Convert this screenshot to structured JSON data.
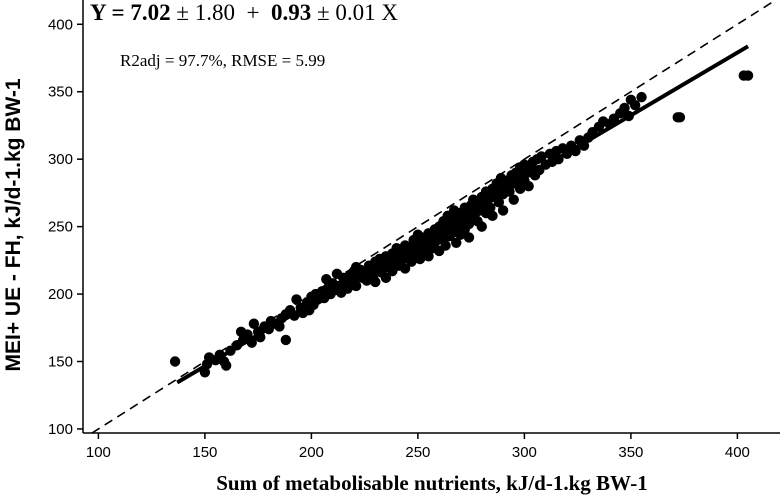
{
  "chart_data": {
    "type": "scatter",
    "xlabel": "Sum of metabolisable nutrients, kJ/d-1.kg BW-1",
    "ylabel": "MEI+ UE - FH, kJ/d-1.kg BW-1",
    "xlim": [
      97,
      420
    ],
    "ylim": [
      97,
      418
    ],
    "xticks": [
      100,
      150,
      200,
      250,
      300,
      350,
      400
    ],
    "yticks": [
      100,
      150,
      200,
      250,
      300,
      350,
      400
    ],
    "equation": {
      "prefix": "Y = ",
      "intercept": "7.02",
      "intercept_se": " ± 1.80  +  ",
      "slope": "0.93",
      "slope_se": " ± 0.01 X"
    },
    "stats_text": "R2adj = 97.7%, RMSE = 5.99",
    "regression_line": {
      "slope": 0.93,
      "intercept": 7.02,
      "x_range": [
        137,
        405
      ]
    },
    "identity_line": {
      "slope": 1,
      "intercept": 0,
      "x_range": [
        97,
        418
      ]
    },
    "points": [
      [
        136,
        150
      ],
      [
        150,
        142
      ],
      [
        151,
        148
      ],
      [
        152,
        153
      ],
      [
        155,
        151
      ],
      [
        157,
        155
      ],
      [
        159,
        150
      ],
      [
        160,
        147
      ],
      [
        162,
        158
      ],
      [
        165,
        162
      ],
      [
        167,
        172
      ],
      [
        168,
        166
      ],
      [
        170,
        170
      ],
      [
        172,
        164
      ],
      [
        173,
        178
      ],
      [
        175,
        172
      ],
      [
        176,
        168
      ],
      [
        178,
        176
      ],
      [
        180,
        174
      ],
      [
        181,
        180
      ],
      [
        183,
        178
      ],
      [
        185,
        176
      ],
      [
        186,
        182
      ],
      [
        188,
        185
      ],
      [
        188,
        166
      ],
      [
        190,
        188
      ],
      [
        192,
        184
      ],
      [
        193,
        196
      ],
      [
        195,
        190
      ],
      [
        196,
        186
      ],
      [
        198,
        194
      ],
      [
        199,
        188
      ],
      [
        200,
        198
      ],
      [
        201,
        192
      ],
      [
        202,
        200
      ],
      [
        203,
        196
      ],
      [
        205,
        202
      ],
      [
        206,
        197
      ],
      [
        207,
        211
      ],
      [
        208,
        205
      ],
      [
        209,
        200
      ],
      [
        210,
        208
      ],
      [
        211,
        203
      ],
      [
        212,
        215
      ],
      [
        213,
        206
      ],
      [
        214,
        201
      ],
      [
        215,
        212
      ],
      [
        216,
        208
      ],
      [
        217,
        204
      ],
      [
        218,
        214
      ],
      [
        219,
        210
      ],
      [
        220,
        217
      ],
      [
        221,
        206
      ],
      [
        221,
        220
      ],
      [
        222,
        213
      ],
      [
        223,
        218
      ],
      [
        224,
        212
      ],
      [
        225,
        216
      ],
      [
        226,
        210
      ],
      [
        227,
        221
      ],
      [
        228,
        218
      ],
      [
        229,
        213
      ],
      [
        230,
        224
      ],
      [
        230,
        209
      ],
      [
        231,
        219
      ],
      [
        232,
        226
      ],
      [
        233,
        216
      ],
      [
        234,
        222
      ],
      [
        235,
        228
      ],
      [
        235,
        212
      ],
      [
        236,
        220
      ],
      [
        237,
        225
      ],
      [
        238,
        230
      ],
      [
        238,
        217
      ],
      [
        239,
        223
      ],
      [
        240,
        228
      ],
      [
        240,
        234
      ],
      [
        241,
        221
      ],
      [
        242,
        232
      ],
      [
        243,
        226
      ],
      [
        244,
        236
      ],
      [
        244,
        219
      ],
      [
        245,
        230
      ],
      [
        246,
        234
      ],
      [
        247,
        224
      ],
      [
        248,
        240
      ],
      [
        248,
        228
      ],
      [
        249,
        236
      ],
      [
        250,
        232
      ],
      [
        250,
        244
      ],
      [
        251,
        226
      ],
      [
        252,
        238
      ],
      [
        253,
        242
      ],
      [
        253,
        231
      ],
      [
        254,
        236
      ],
      [
        255,
        245
      ],
      [
        255,
        228
      ],
      [
        256,
        240
      ],
      [
        257,
        234
      ],
      [
        258,
        248
      ],
      [
        258,
        238
      ],
      [
        259,
        242
      ],
      [
        260,
        250
      ],
      [
        260,
        232
      ],
      [
        261,
        246
      ],
      [
        262,
        240
      ],
      [
        262,
        254
      ],
      [
        263,
        236
      ],
      [
        264,
        248
      ],
      [
        264,
        258
      ],
      [
        265,
        243
      ],
      [
        266,
        252
      ],
      [
        267,
        246
      ],
      [
        267,
        262
      ],
      [
        268,
        238
      ],
      [
        268,
        256
      ],
      [
        269,
        250
      ],
      [
        270,
        260
      ],
      [
        270,
        244
      ],
      [
        271,
        254
      ],
      [
        272,
        248
      ],
      [
        272,
        264
      ],
      [
        273,
        258
      ],
      [
        274,
        252
      ],
      [
        274,
        242
      ],
      [
        275,
        266
      ],
      [
        276,
        256
      ],
      [
        276,
        270
      ],
      [
        277,
        260
      ],
      [
        278,
        254
      ],
      [
        278,
        268
      ],
      [
        279,
        262
      ],
      [
        280,
        272
      ],
      [
        280,
        250
      ],
      [
        281,
        266
      ],
      [
        282,
        260
      ],
      [
        282,
        276
      ],
      [
        283,
        270
      ],
      [
        284,
        264
      ],
      [
        285,
        278
      ],
      [
        285,
        258
      ],
      [
        286,
        272
      ],
      [
        287,
        282
      ],
      [
        288,
        268
      ],
      [
        288,
        276
      ],
      [
        289,
        286
      ],
      [
        290,
        274
      ],
      [
        290,
        262
      ],
      [
        291,
        280
      ],
      [
        292,
        284
      ],
      [
        293,
        276
      ],
      [
        294,
        288
      ],
      [
        295,
        282
      ],
      [
        295,
        270
      ],
      [
        296,
        290
      ],
      [
        297,
        284
      ],
      [
        298,
        278
      ],
      [
        298,
        294
      ],
      [
        299,
        288
      ],
      [
        300,
        284
      ],
      [
        300,
        296
      ],
      [
        301,
        290
      ],
      [
        302,
        280
      ],
      [
        303,
        294
      ],
      [
        304,
        298
      ],
      [
        305,
        288
      ],
      [
        306,
        300
      ],
      [
        307,
        292
      ],
      [
        308,
        302
      ],
      [
        310,
        296
      ],
      [
        312,
        304
      ],
      [
        313,
        298
      ],
      [
        315,
        306
      ],
      [
        316,
        300
      ],
      [
        318,
        308
      ],
      [
        320,
        304
      ],
      [
        322,
        310
      ],
      [
        324,
        306
      ],
      [
        326,
        314
      ],
      [
        328,
        310
      ],
      [
        330,
        316
      ],
      [
        332,
        320
      ],
      [
        335,
        324
      ],
      [
        337,
        328
      ],
      [
        340,
        326
      ],
      [
        342,
        330
      ],
      [
        345,
        334
      ],
      [
        347,
        338
      ],
      [
        349,
        332
      ],
      [
        350,
        344
      ],
      [
        352,
        340
      ],
      [
        355,
        346
      ],
      [
        372,
        331
      ],
      [
        373,
        331
      ],
      [
        403,
        362
      ],
      [
        405,
        362
      ]
    ]
  }
}
